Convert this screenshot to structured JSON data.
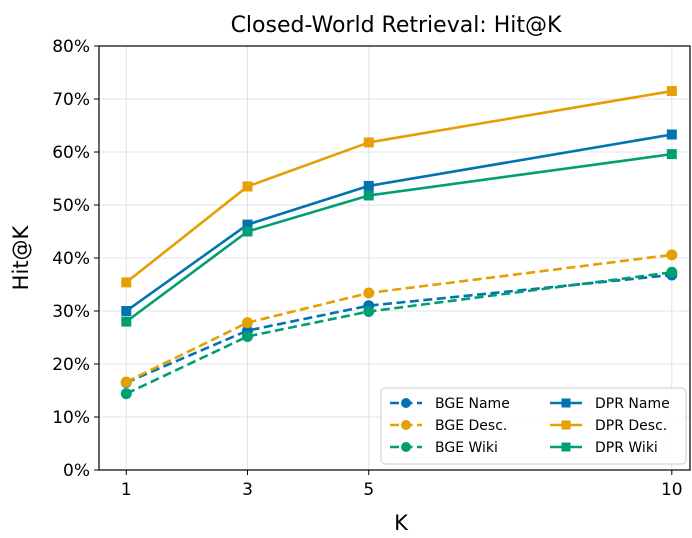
{
  "chart_data": {
    "type": "line",
    "title": "Closed-World Retrieval: Hit@K",
    "xlabel": "K",
    "ylabel": "Hit@K",
    "x": [
      1,
      3,
      5,
      10
    ],
    "xticks": [
      "1",
      "3",
      "5",
      "10"
    ],
    "xlim": [
      0.55,
      10.3
    ],
    "ylim": [
      0,
      80
    ],
    "yticks": [
      "0%",
      "10%",
      "20%",
      "30%",
      "40%",
      "50%",
      "60%",
      "70%",
      "80%"
    ],
    "grid": true,
    "legend_position": "lower-right",
    "series": [
      {
        "name": "BGE Name",
        "values": [
          16.5,
          26.3,
          31.0,
          36.8
        ],
        "color": "#0173b2",
        "dashed": true,
        "marker": "circle"
      },
      {
        "name": "DPR Name",
        "values": [
          30.0,
          46.3,
          53.6,
          63.3
        ],
        "color": "#0173b2",
        "dashed": false,
        "marker": "square"
      },
      {
        "name": "BGE Desc.",
        "values": [
          16.6,
          27.8,
          33.4,
          40.6
        ],
        "color": "#e69f00",
        "dashed": true,
        "marker": "circle"
      },
      {
        "name": "DPR Desc.",
        "values": [
          35.4,
          53.5,
          61.8,
          71.5
        ],
        "color": "#e69f00",
        "dashed": false,
        "marker": "square"
      },
      {
        "name": "BGE Wiki",
        "values": [
          14.4,
          25.2,
          29.9,
          37.3
        ],
        "color": "#029e73",
        "dashed": true,
        "marker": "circle"
      },
      {
        "name": "DPR Wiki",
        "values": [
          28.0,
          45.0,
          51.8,
          59.6
        ],
        "color": "#029e73",
        "dashed": false,
        "marker": "square"
      }
    ]
  }
}
